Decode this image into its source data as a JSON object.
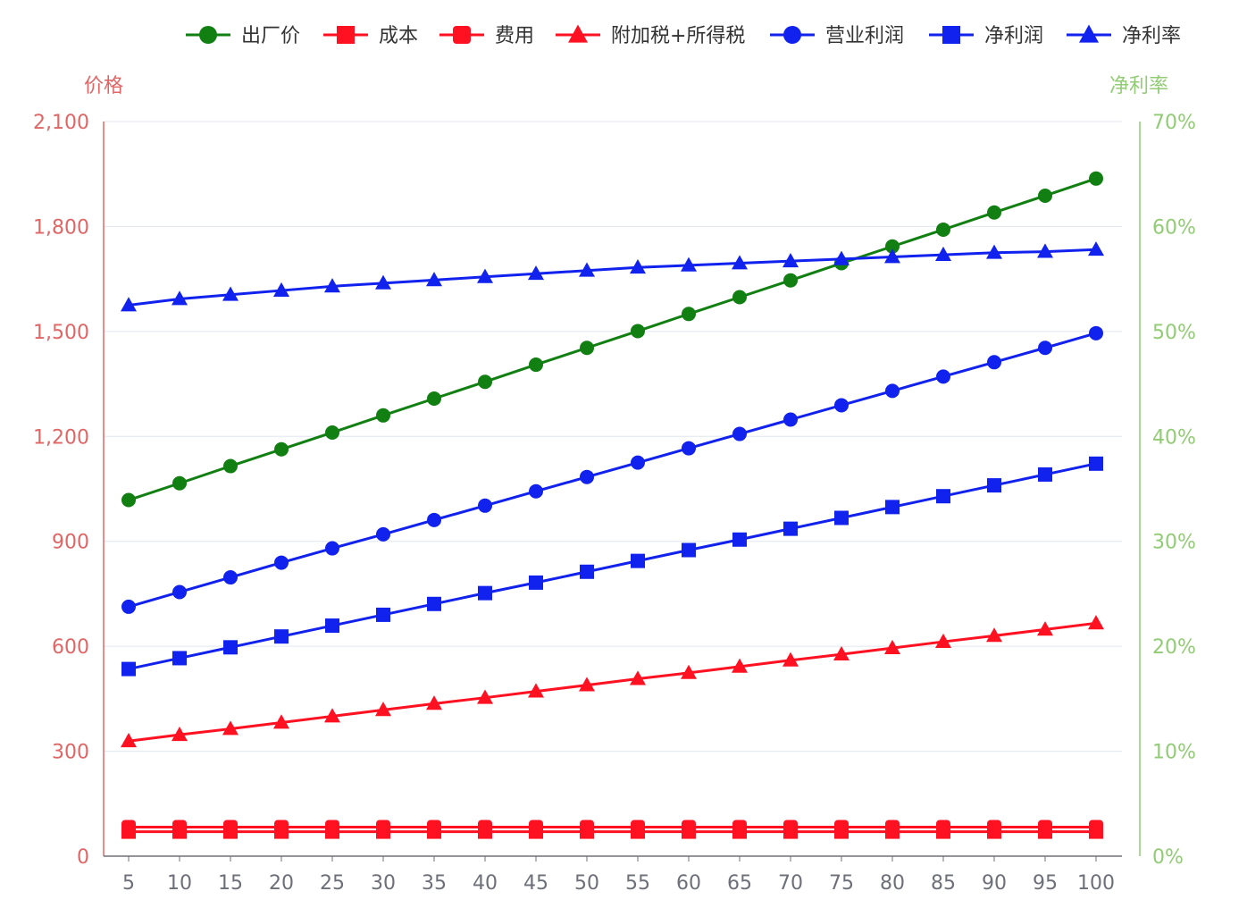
{
  "chart_data": {
    "type": "line",
    "x": [
      5,
      10,
      15,
      20,
      25,
      30,
      35,
      40,
      45,
      50,
      55,
      60,
      65,
      70,
      75,
      80,
      85,
      90,
      95,
      100
    ],
    "y_left": {
      "label": "价格",
      "ticks": [
        "0",
        "300",
        "600",
        "900",
        "1,200",
        "1,500",
        "1,800",
        "2,100"
      ],
      "range": [
        0,
        2100
      ],
      "color": "#e06666"
    },
    "y_right": {
      "label": "净利率",
      "ticks": [
        "0%",
        "10%",
        "20%",
        "30%",
        "40%",
        "50%",
        "60%",
        "70%"
      ],
      "range": [
        0,
        0.7
      ],
      "color": "#91cc75"
    },
    "grid": true,
    "legend_position": "top-right",
    "series": [
      {
        "name": "出厂价",
        "color": "#117f11",
        "symbol": "circle",
        "axis": "left",
        "values": [
          1018,
          1066,
          1115,
          1163,
          1211,
          1260,
          1308,
          1356,
          1405,
          1453,
          1501,
          1550,
          1598,
          1646,
          1695,
          1743,
          1791,
          1840,
          1888,
          1937
        ]
      },
      {
        "name": "成本",
        "color": "#ff1122",
        "symbol": "rect",
        "axis": "left",
        "values": [
          70,
          70,
          70,
          70,
          70,
          70,
          70,
          70,
          70,
          70,
          70,
          70,
          70,
          70,
          70,
          70,
          70,
          70,
          70,
          70
        ]
      },
      {
        "name": "费用",
        "color": "#ff1122",
        "symbol": "roundRect",
        "axis": "left",
        "values": [
          83,
          83,
          83,
          83,
          83,
          83,
          83,
          83,
          83,
          83,
          83,
          83,
          83,
          83,
          83,
          83,
          83,
          83,
          83,
          83
        ]
      },
      {
        "name": "附加税+所得税",
        "color": "#ff1122",
        "symbol": "triangle",
        "axis": "left",
        "values": [
          329,
          347,
          364,
          382,
          400,
          418,
          436,
          453,
          471,
          489,
          507,
          524,
          542,
          560,
          577,
          595,
          613,
          630,
          648,
          666
        ]
      },
      {
        "name": "营业利润",
        "color": "#1122ee",
        "symbol": "circle",
        "axis": "left",
        "values": [
          713,
          755,
          797,
          839,
          880,
          920,
          961,
          1002,
          1043,
          1084,
          1125,
          1166,
          1207,
          1248,
          1289,
          1330,
          1371,
          1412,
          1453,
          1495
        ]
      },
      {
        "name": "净利润",
        "color": "#1122ee",
        "symbol": "rect",
        "axis": "left",
        "values": [
          535,
          566,
          597,
          628,
          659,
          690,
          721,
          752,
          782,
          813,
          844,
          875,
          905,
          936,
          967,
          998,
          1029,
          1060,
          1091,
          1122
        ]
      },
      {
        "name": "净利率",
        "color": "#1122ee",
        "symbol": "triangle",
        "axis": "right",
        "values": [
          0.525,
          0.531,
          0.535,
          0.539,
          0.543,
          0.546,
          0.549,
          0.552,
          0.555,
          0.558,
          0.561,
          0.563,
          0.565,
          0.567,
          0.569,
          0.571,
          0.573,
          0.575,
          0.576,
          0.578
        ]
      }
    ]
  }
}
